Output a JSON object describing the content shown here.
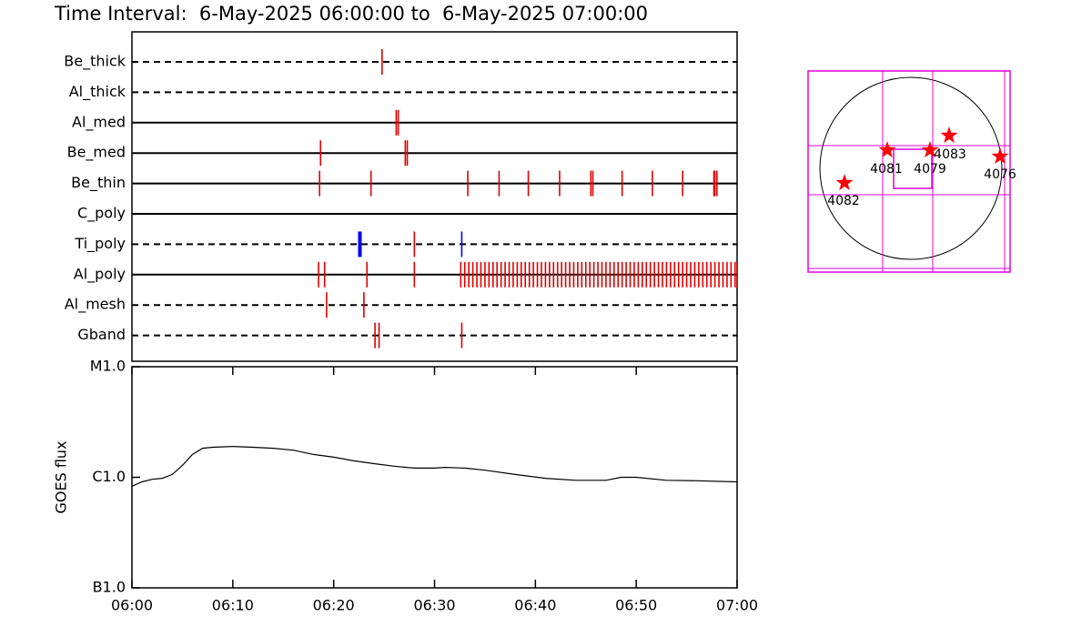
{
  "chart_data": [
    {
      "type": "timeline",
      "title": "Time Interval:  6-May-2025 06:00:00 to  6-May-2025 07:00:00",
      "xlim": [
        0,
        60
      ],
      "rows": [
        {
          "name": "Be_thick",
          "line_style": "dashed",
          "color": "#e00000",
          "values": [
            24.8
          ]
        },
        {
          "name": "Al_thick",
          "line_style": "dashed",
          "color": "#e00000",
          "values": []
        },
        {
          "name": "Al_med",
          "line_style": "solid",
          "color": "#e00000",
          "values": [
            26.2,
            26.4
          ]
        },
        {
          "name": "Be_med",
          "line_style": "solid",
          "color": "#e00000",
          "values": [
            18.7,
            27.1,
            27.3
          ]
        },
        {
          "name": "Be_thin",
          "line_style": "solid",
          "color": "#e00000",
          "values": [
            18.6,
            23.7,
            33.3,
            36.4,
            39.3,
            42.4,
            45.5,
            45.7,
            48.6,
            51.6,
            54.6,
            57.7,
            57.8,
            58.0
          ]
        },
        {
          "name": "C_poly",
          "line_style": "solid",
          "color": "#e00000",
          "values": []
        },
        {
          "name": "Ti_poly",
          "line_style": "dashed",
          "color": "#e00000",
          "values": [
            22.6,
            28.0,
            32.7
          ],
          "colors": [
            "#0000ff",
            "#e00000",
            "#0000ff"
          ]
        },
        {
          "name": "Al_poly",
          "line_style": "solid",
          "color": "#e00000",
          "values": [
            18.5,
            19.1,
            23.3,
            28.0,
            32.6,
            33.0,
            33.4,
            33.8,
            34.2,
            34.6,
            35.0,
            35.4,
            35.8,
            36.2,
            36.6,
            37.0,
            37.4,
            37.8,
            38.2,
            38.6,
            39.0,
            39.4,
            39.8,
            40.2,
            40.6,
            41.0,
            41.4,
            41.8,
            42.2,
            42.6,
            43.0,
            43.4,
            43.8,
            44.2,
            44.6,
            45.0,
            45.4,
            45.8,
            46.2,
            46.6,
            47.0,
            47.4,
            47.8,
            48.2,
            48.6,
            49.0,
            49.4,
            49.8,
            50.2,
            50.6,
            51.0,
            51.4,
            51.8,
            52.2,
            52.6,
            53.0,
            53.4,
            53.8,
            54.2,
            54.6,
            55.0,
            55.4,
            55.8,
            56.2,
            56.6,
            57.0,
            57.4,
            57.8,
            58.2,
            58.6,
            59.0,
            59.4,
            59.8,
            60.0
          ]
        },
        {
          "name": "Al_mesh",
          "line_style": "dashed",
          "color": "#e00000",
          "values": [
            19.3,
            23.0
          ]
        },
        {
          "name": "Gband",
          "line_style": "dashed",
          "color": "#e00000",
          "values": [
            24.1,
            24.5,
            32.7
          ]
        }
      ]
    },
    {
      "type": "line",
      "y_label": "GOES flux",
      "color": "#000000",
      "xlim": [
        0,
        60
      ],
      "xticks": [
        {
          "value": 0,
          "label": "06:00"
        },
        {
          "value": 10,
          "label": "06:10"
        },
        {
          "value": 20,
          "label": "06:20"
        },
        {
          "value": 30,
          "label": "06:30"
        },
        {
          "value": 40,
          "label": "06:40"
        },
        {
          "value": 50,
          "label": "06:50"
        },
        {
          "value": 60,
          "label": "07:00"
        }
      ],
      "ylog": true,
      "ylim": [
        1e-07,
        1e-05
      ],
      "yticks": [
        {
          "value": 1e-07,
          "label": "B1.0"
        },
        {
          "value": 1e-06,
          "label": "C1.0"
        },
        {
          "value": 1e-05,
          "label": "M1.0"
        }
      ],
      "x": [
        0,
        1,
        2,
        3,
        4,
        5,
        6,
        7,
        8,
        10,
        12,
        14,
        16,
        18,
        20,
        22,
        24,
        26,
        28,
        30,
        31,
        33,
        35,
        38,
        41,
        44,
        47,
        48.5,
        50,
        53,
        56,
        60
      ],
      "values": [
        8.3e-07,
        9.1e-07,
        9.6e-07,
        9.8e-07,
        1.06e-06,
        1.28e-06,
        1.61e-06,
        1.83e-06,
        1.87e-06,
        1.9e-06,
        1.87e-06,
        1.83e-06,
        1.76e-06,
        1.61e-06,
        1.52e-06,
        1.41e-06,
        1.33e-06,
        1.26e-06,
        1.21e-06,
        1.21e-06,
        1.23e-06,
        1.21e-06,
        1.16e-06,
        1.06e-06,
        9.8e-07,
        9.4e-07,
        9.4e-07,
        1e-06,
        1e-06,
        9.4e-07,
        9.3e-07,
        9.1e-07
      ]
    }
  ],
  "map": {
    "regions": [
      "4082",
      "4081",
      "4079",
      "4083",
      "4076"
    ]
  }
}
